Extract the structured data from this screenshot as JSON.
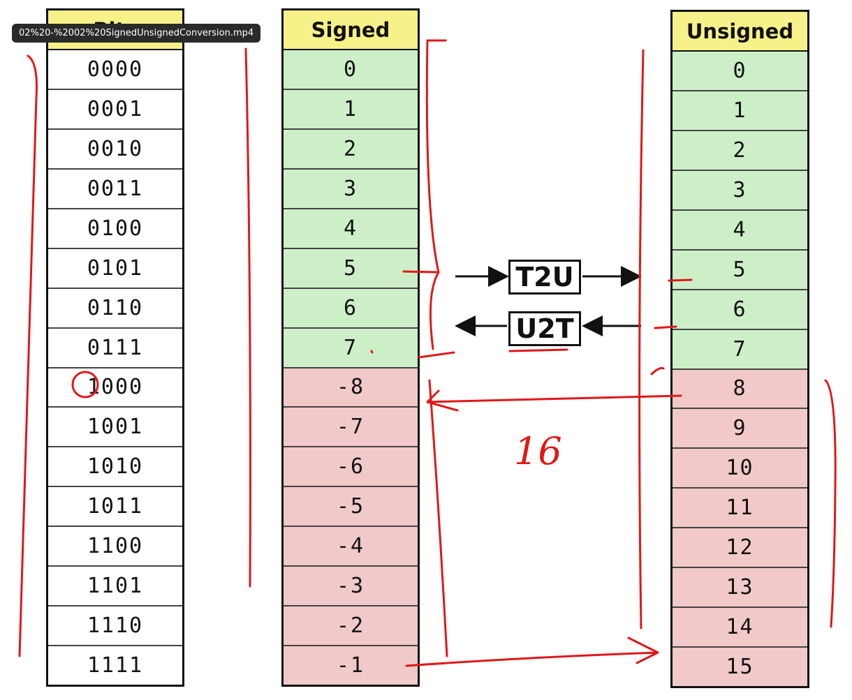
{
  "video_title": "02%20-%2002%20SignedUnsignedConversion.mp4",
  "bits": {
    "header": "Bits",
    "values": [
      "0000",
      "0001",
      "0010",
      "0011",
      "0100",
      "0101",
      "0110",
      "0111",
      "1000",
      "1001",
      "1010",
      "1011",
      "1100",
      "1101",
      "1110",
      "1111"
    ]
  },
  "signed": {
    "header": "Signed",
    "values": [
      "0",
      "1",
      "2",
      "3",
      "4",
      "5",
      "6",
      "7",
      "-8",
      "-7",
      "-6",
      "-5",
      "-4",
      "-3",
      "-2",
      "-1"
    ]
  },
  "unsigned": {
    "header": "Unsigned",
    "values": [
      "0",
      "1",
      "2",
      "3",
      "4",
      "5",
      "6",
      "7",
      "8",
      "9",
      "10",
      "11",
      "12",
      "13",
      "14",
      "15"
    ]
  },
  "operations": {
    "t2u": "T2U",
    "u2t": "U2T"
  },
  "annotation": {
    "handwritten_number": "16"
  },
  "colors": {
    "header": "#f7f189",
    "positive": "#cdefc8",
    "negative": "#f1c9c9",
    "ink": "#e01818"
  }
}
